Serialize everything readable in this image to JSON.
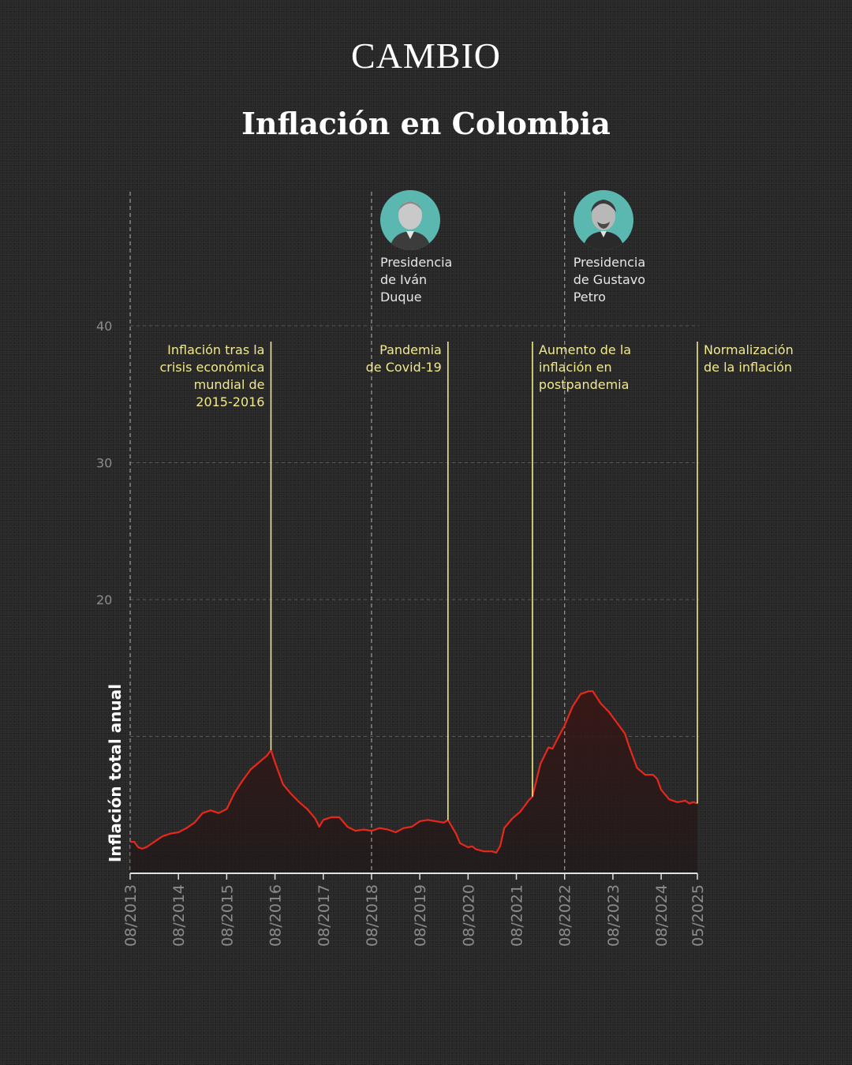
{
  "brand": "CAMBIO",
  "colors": {
    "background": "#272727",
    "line": "#e8281a",
    "annotation": "#f2e98a",
    "portrait_bg": "#5bb8b0"
  },
  "chart_data": {
    "type": "line",
    "title": "Inflación en Colombia",
    "ylabel": "Inflación total anual",
    "ylim": [
      0,
      40
    ],
    "yticks": [
      20,
      30,
      40
    ],
    "xlim": [
      "2013-08",
      "2025-05"
    ],
    "x_tick_labels": [
      "08/2013",
      "08/2014",
      "08/2015",
      "08/2016",
      "08/2017",
      "08/2018",
      "08/2019",
      "08/2020",
      "08/2021",
      "08/2022",
      "08/2023",
      "08/2024",
      "05/2025"
    ],
    "grid": true,
    "series": [
      {
        "values": [
          [
            "2013-08",
            2.3
          ],
          [
            "2013-09",
            2.3
          ],
          [
            "2013-10",
            1.9
          ],
          [
            "2013-11",
            1.8
          ],
          [
            "2013-12",
            1.9
          ],
          [
            "2014-02",
            2.3
          ],
          [
            "2014-04",
            2.7
          ],
          [
            "2014-06",
            2.9
          ],
          [
            "2014-08",
            3.0
          ],
          [
            "2014-10",
            3.3
          ],
          [
            "2014-12",
            3.7
          ],
          [
            "2015-02",
            4.4
          ],
          [
            "2015-04",
            4.6
          ],
          [
            "2015-06",
            4.4
          ],
          [
            "2015-08",
            4.7
          ],
          [
            "2015-10",
            5.9
          ],
          [
            "2015-12",
            6.8
          ],
          [
            "2016-02",
            7.6
          ],
          [
            "2016-04",
            8.1
          ],
          [
            "2016-06",
            8.6
          ],
          [
            "2016-07",
            9.0
          ],
          [
            "2016-08",
            8.1
          ],
          [
            "2016-10",
            6.5
          ],
          [
            "2016-12",
            5.8
          ],
          [
            "2017-02",
            5.2
          ],
          [
            "2017-04",
            4.7
          ],
          [
            "2017-06",
            4.0
          ],
          [
            "2017-07",
            3.4
          ],
          [
            "2017-08",
            3.9
          ],
          [
            "2017-10",
            4.1
          ],
          [
            "2017-12",
            4.1
          ],
          [
            "2018-02",
            3.4
          ],
          [
            "2018-04",
            3.1
          ],
          [
            "2018-06",
            3.2
          ],
          [
            "2018-08",
            3.1
          ],
          [
            "2018-10",
            3.3
          ],
          [
            "2018-12",
            3.2
          ],
          [
            "2019-02",
            3.0
          ],
          [
            "2019-04",
            3.3
          ],
          [
            "2019-06",
            3.4
          ],
          [
            "2019-08",
            3.8
          ],
          [
            "2019-10",
            3.9
          ],
          [
            "2019-12",
            3.8
          ],
          [
            "2020-02",
            3.7
          ],
          [
            "2020-03",
            3.9
          ],
          [
            "2020-05",
            2.9
          ],
          [
            "2020-06",
            2.2
          ],
          [
            "2020-08",
            1.9
          ],
          [
            "2020-09",
            1.97
          ],
          [
            "2020-10",
            1.75
          ],
          [
            "2020-12",
            1.6
          ],
          [
            "2021-02",
            1.6
          ],
          [
            "2021-03",
            1.5
          ],
          [
            "2021-04",
            2.0
          ],
          [
            "2021-05",
            3.3
          ],
          [
            "2021-07",
            4.0
          ],
          [
            "2021-09",
            4.5
          ],
          [
            "2021-11",
            5.3
          ],
          [
            "2021-12",
            5.6
          ],
          [
            "2022-02",
            8.0
          ],
          [
            "2022-04",
            9.2
          ],
          [
            "2022-05",
            9.1
          ],
          [
            "2022-06",
            9.7
          ],
          [
            "2022-08",
            10.8
          ],
          [
            "2022-10",
            12.2
          ],
          [
            "2022-12",
            13.1
          ],
          [
            "2023-02",
            13.3
          ],
          [
            "2023-03",
            13.3
          ],
          [
            "2023-05",
            12.4
          ],
          [
            "2023-07",
            11.8
          ],
          [
            "2023-09",
            11.0
          ],
          [
            "2023-11",
            10.2
          ],
          [
            "2023-12",
            9.3
          ],
          [
            "2024-02",
            7.7
          ],
          [
            "2024-04",
            7.2
          ],
          [
            "2024-06",
            7.2
          ],
          [
            "2024-07",
            6.9
          ],
          [
            "2024-08",
            6.1
          ],
          [
            "2024-10",
            5.4
          ],
          [
            "2024-12",
            5.2
          ],
          [
            "2025-02",
            5.3
          ],
          [
            "2025-03",
            5.1
          ],
          [
            "2025-04",
            5.2
          ],
          [
            "2025-05",
            5.1
          ]
        ]
      }
    ],
    "presidencies": [
      {
        "date": "2018-08",
        "label": "Presidencia\nde Iván\nDuque",
        "portrait": "ivan-duque"
      },
      {
        "date": "2022-08",
        "label": "Presidencia\nde Gustavo\nPetro",
        "portrait": "gustavo-petro"
      }
    ],
    "annotations": [
      {
        "date": "2016-07",
        "label": "Inflación tras la\ncrisis económica\nmundial de\n2015-2016",
        "align": "right"
      },
      {
        "date": "2020-03",
        "label": "Pandemia\nde Covid-19",
        "align": "right"
      },
      {
        "date": "2021-12",
        "label": "Aumento de la\ninflación en\npostpandemia",
        "align": "left"
      },
      {
        "date": "2025-05",
        "label": "Normalización\nde la inflación",
        "align": "left"
      }
    ]
  }
}
